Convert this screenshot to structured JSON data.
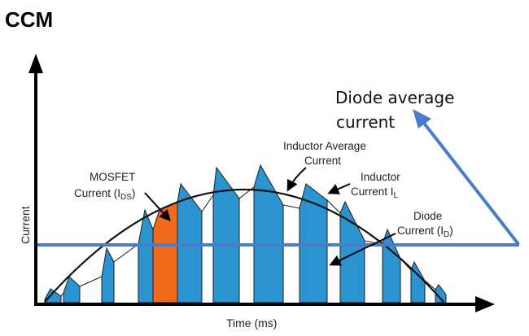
{
  "title": "CCM",
  "xlabel": "Time (ms)",
  "ylabel": "Current",
  "labels": {
    "mosfet_line1": "MOSFET",
    "mosfet_line2_prefix": "Current (I",
    "mosfet_line2_sub": "DS",
    "mosfet_line2_suffix": ")",
    "inductor_avg_line1": "Inductor Average",
    "inductor_avg_line2": "Current",
    "inductor_line1": "Inductor",
    "inductor_line2_prefix": "Current I",
    "inductor_line2_sub": "L",
    "diode_line1": "Diode",
    "diode_line2_prefix": "Current (I",
    "diode_line2_sub": "D",
    "diode_line2_suffix": ")",
    "diode_avg_line1": "Diode average",
    "diode_avg_line2": "current"
  },
  "colors": {
    "blue_fill": "#2b94d0",
    "orange_fill": "#ef6a1c",
    "blue_line": "#4a7ccc",
    "axis": "#000000"
  }
}
